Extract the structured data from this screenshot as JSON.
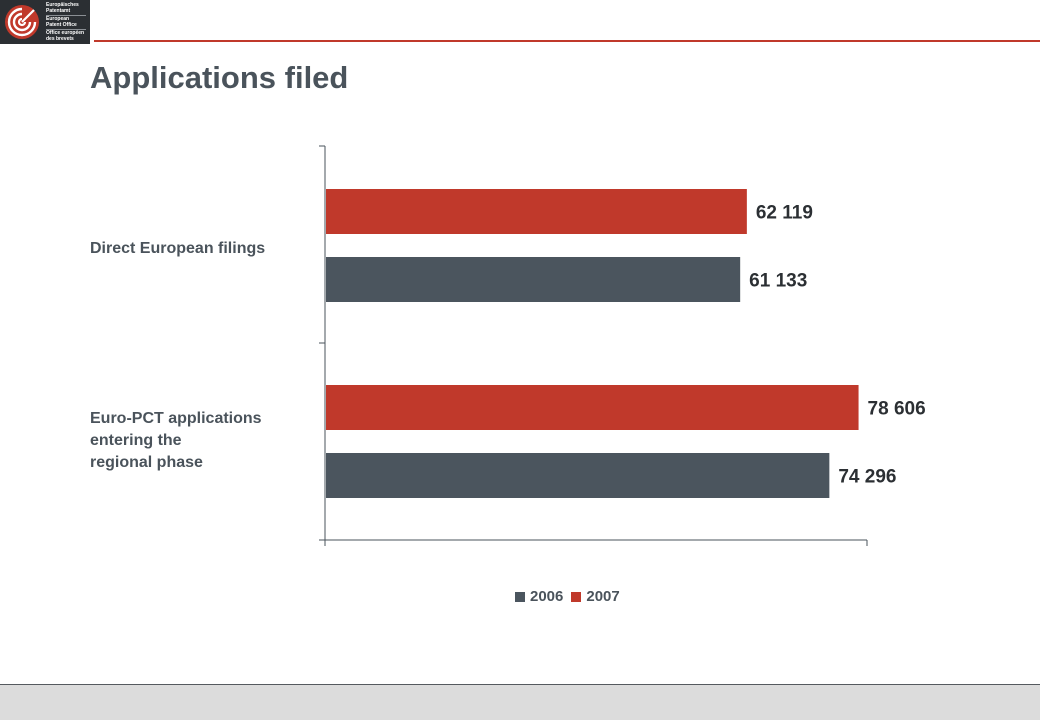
{
  "logo": {
    "lines": [
      "Europäisches",
      "Patentamt",
      "European",
      "Patent Office",
      "Office européen",
      "des brevets"
    ]
  },
  "page_title": "Applications filed",
  "colors": {
    "series_2006": "#4b555e",
    "series_2007": "#c0392b",
    "title": "#4a535b",
    "accent_rule": "#c0392b"
  },
  "chart_data": {
    "type": "bar",
    "orientation": "horizontal",
    "categories": [
      [
        "Direct European filings"
      ],
      [
        "Euro-PCT applications",
        "entering the",
        "regional phase"
      ]
    ],
    "series": [
      {
        "name": "2007",
        "values": [
          62119,
          78606
        ],
        "color": "#c0392b"
      },
      {
        "name": "2006",
        "values": [
          61133,
          74296
        ],
        "color": "#4b555e"
      }
    ],
    "data_labels": [
      [
        "62 119",
        "78 606"
      ],
      [
        "61 133",
        "74 296"
      ]
    ],
    "xlim": [
      0,
      80000
    ],
    "legend": {
      "placement": "bottom",
      "entries": [
        "2006",
        "2007"
      ]
    },
    "grid": false
  }
}
